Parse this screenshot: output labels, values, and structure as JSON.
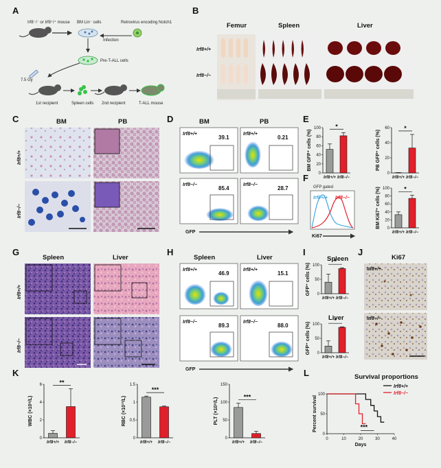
{
  "panels": [
    "A",
    "B",
    "C",
    "D",
    "E",
    "F",
    "G",
    "H",
    "I",
    "J",
    "K",
    "L"
  ],
  "panel_a": {
    "mouse_label": "Irf8⁻/⁻ or Irf8⁺/⁺ mouse",
    "bm_cells": "BM Lin⁻ cells",
    "retrovirus": "Retrovirus encoding Notch1",
    "infection": "Infection",
    "pretall": "Pre-T-ALL cells",
    "dose": "7.5 Gy",
    "first_recipient": "1st recipient",
    "spleen_cells": "Spleen cells",
    "second_recipient": "2nd recipient",
    "tall_mouse": "T-ALL mouse"
  },
  "panel_b": {
    "organs": [
      "Femur",
      "Spleen",
      "Liver"
    ],
    "genotypes": [
      "Irf8+/+",
      "Irf8−/−"
    ]
  },
  "panel_c": {
    "titles": [
      "BM",
      "PB"
    ],
    "genotypes": [
      "Irf8+/+",
      "Irf8−/−"
    ]
  },
  "panel_d": {
    "titles": [
      "BM",
      "PB"
    ],
    "values": [
      "39.1",
      "0.21",
      "85.4",
      "28.7"
    ],
    "genotypes": [
      "Irf8+/+",
      "Irf8+/+",
      "Irf8−/−",
      "Irf8−/−"
    ],
    "xlabel": "GFP"
  },
  "panel_f": {
    "gated": "GFP gated",
    "legend": [
      "Irf8+/+",
      "Irf8−/−"
    ],
    "xlabel": "Ki67",
    "colors": [
      "#3fa7e0",
      "#e0202a"
    ]
  },
  "panel_g": {
    "titles": [
      "Spleen",
      "Liver"
    ],
    "genotypes": [
      "Irf8+/+",
      "Irf8−/−"
    ]
  },
  "panel_h": {
    "titles": [
      "Spleen",
      "Liver"
    ],
    "values": [
      "46.9",
      "15.1",
      "89.3",
      "88.0"
    ],
    "genotypes": [
      "Irf8+/+",
      "Irf8+/+",
      "Irf8−/−",
      "Irf8−/−"
    ],
    "xlabel": "GFP"
  },
  "panel_i": {
    "titles": [
      "Spleen",
      "Liver"
    ]
  },
  "panel_j": {
    "title": "Ki67",
    "genotypes": [
      "Irf8+/+",
      "Irf8−/−"
    ]
  },
  "panel_l": {
    "title": "Survival proportions",
    "legend": [
      "Irf8+/+",
      "Irf8−/−"
    ],
    "colors": [
      "#111111",
      "#e0202a"
    ],
    "sig": "***"
  },
  "chart_data": [
    {
      "id": "E-BM",
      "type": "bar",
      "categories": [
        "Irf8+/+",
        "Irf8−/−"
      ],
      "values": [
        52,
        82
      ],
      "errors": [
        12,
        7
      ],
      "ylabel": "BM GFP⁺ cells (%)",
      "ylim": [
        0,
        100
      ],
      "yticks": [
        0,
        20,
        40,
        60,
        80,
        100
      ],
      "colors": [
        "#9a9a9a",
        "#e0202a"
      ],
      "significance": "*"
    },
    {
      "id": "E-PB",
      "type": "bar",
      "categories": [
        "Irf8+/+",
        "Irf8−/−"
      ],
      "values": [
        0.3,
        33
      ],
      "errors": [
        0.2,
        18
      ],
      "ylabel": "PB GFP⁺ cells (%)",
      "ylim": [
        0,
        60
      ],
      "yticks": [
        0,
        20,
        40,
        60
      ],
      "colors": [
        "#9a9a9a",
        "#e0202a"
      ],
      "significance": "*"
    },
    {
      "id": "F-Ki67",
      "type": "bar",
      "categories": [
        "Irf8+/+",
        "Irf8−/−"
      ],
      "values": [
        33,
        74
      ],
      "errors": [
        7,
        8
      ],
      "ylabel": "BM Ki67⁺ cells (%)",
      "ylim": [
        0,
        100
      ],
      "yticks": [
        0,
        20,
        40,
        60,
        80,
        100
      ],
      "colors": [
        "#9a9a9a",
        "#e0202a"
      ],
      "significance": "*"
    },
    {
      "id": "I-Spleen",
      "type": "bar",
      "categories": [
        "Irf8+/+",
        "Irf8−/−"
      ],
      "values": [
        40,
        87
      ],
      "errors": [
        28,
        3
      ],
      "ylabel": "GFP⁺ cells (%)",
      "ylim": [
        0,
        100
      ],
      "yticks": [
        0,
        50,
        100
      ],
      "colors": [
        "#9a9a9a",
        "#e0202a"
      ],
      "significance": "*"
    },
    {
      "id": "I-Liver",
      "type": "bar",
      "categories": [
        "Irf8+/+",
        "Irf8−/−"
      ],
      "values": [
        23,
        88
      ],
      "errors": [
        18,
        2
      ],
      "ylabel": "GFP⁺ cells (%)",
      "ylim": [
        0,
        100
      ],
      "yticks": [
        0,
        50,
        100
      ],
      "colors": [
        "#9a9a9a",
        "#e0202a"
      ],
      "significance": "*"
    },
    {
      "id": "K-WBC",
      "type": "bar",
      "categories": [
        "Irf8+/+",
        "Irf8−/−"
      ],
      "values": [
        0.5,
        3.5
      ],
      "errors": [
        0.3,
        2.0
      ],
      "ylabel": "WBC (×10⁹/L)",
      "ylim": [
        0,
        6
      ],
      "yticks": [
        0,
        2,
        4,
        6
      ],
      "colors": [
        "#9a9a9a",
        "#e0202a"
      ],
      "significance": "**"
    },
    {
      "id": "K-RBC",
      "type": "bar",
      "categories": [
        "Irf8+/+",
        "Irf8−/−"
      ],
      "values": [
        1.14,
        0.87
      ],
      "errors": [
        0.03,
        0.02
      ],
      "ylabel": "RBC (×10¹²/L)",
      "ylim": [
        0,
        1.5
      ],
      "yticks": [
        0,
        0.5,
        1.0,
        1.5
      ],
      "colors": [
        "#9a9a9a",
        "#e0202a"
      ],
      "significance": "***"
    },
    {
      "id": "K-PLT",
      "type": "bar",
      "categories": [
        "Irf8+/+",
        "Irf8−/−"
      ],
      "values": [
        85,
        12
      ],
      "errors": [
        12,
        6
      ],
      "ylabel": "PLT (×10⁹/L)",
      "ylim": [
        0,
        150
      ],
      "yticks": [
        0,
        50,
        100,
        150
      ],
      "colors": [
        "#9a9a9a",
        "#e0202a"
      ],
      "significance": "***"
    },
    {
      "id": "L-Survival",
      "type": "line",
      "xlabel": "Days",
      "ylabel": "Percent survival",
      "xlim": [
        0,
        40
      ],
      "ylim": [
        0,
        100
      ],
      "xticks": [
        0,
        10,
        20,
        30,
        40
      ],
      "yticks": [
        0,
        50,
        100
      ],
      "series": [
        {
          "name": "Irf8+/+",
          "x": [
            0,
            23,
            23,
            26,
            26,
            28,
            28,
            30,
            30,
            32,
            32,
            34
          ],
          "y": [
            100,
            100,
            86,
            86,
            71,
            71,
            57,
            57,
            43,
            43,
            29,
            29
          ]
        },
        {
          "name": "Irf8−/−",
          "x": [
            0,
            17,
            17,
            19,
            19,
            21,
            21,
            23
          ],
          "y": [
            100,
            100,
            75,
            75,
            50,
            50,
            25,
            25
          ]
        }
      ]
    }
  ]
}
